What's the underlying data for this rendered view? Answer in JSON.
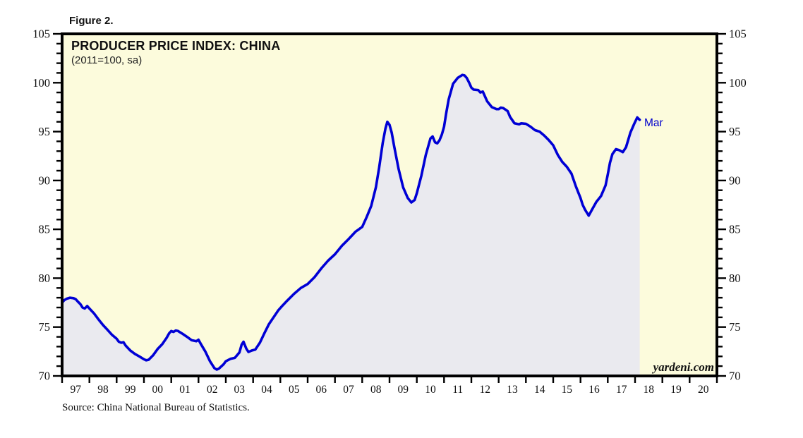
{
  "figure_label": "Figure 2.",
  "header": {
    "title": "PRODUCER PRICE INDEX: CHINA",
    "subtitle": "(2011=100, sa)"
  },
  "watermark": "yardeni.com",
  "source": "Source: China National Bureau of Statistics.",
  "colors": {
    "page_bg": "#ffffff",
    "plot_bg": "#fcfbdc",
    "area_fill": "#eaeaef",
    "line": "#0000d5",
    "frame": "#000000",
    "end_label": "#0000cc",
    "tick": "#000000"
  },
  "chart_data": {
    "type": "line",
    "title": "PRODUCER PRICE INDEX: CHINA",
    "subtitle": "(2011=100, sa)",
    "grid": false,
    "legend": "none",
    "x_axis": {
      "min": 1997,
      "max": 2021,
      "tick_interval_years": 1,
      "labels": [
        "97",
        "98",
        "99",
        "00",
        "01",
        "02",
        "03",
        "04",
        "05",
        "06",
        "07",
        "08",
        "09",
        "10",
        "11",
        "12",
        "13",
        "14",
        "15",
        "16",
        "17",
        "18",
        "19",
        "20"
      ]
    },
    "y_axis": {
      "min": 70,
      "max": 105,
      "major_tick": 5,
      "minor_tick": 1,
      "tick_labels": [
        "70",
        "75",
        "80",
        "85",
        "90",
        "95",
        "100",
        "105"
      ],
      "sides": [
        "left",
        "right"
      ]
    },
    "last_point_label": "Mar",
    "series": [
      {
        "name": "Producer Price Index: China (2011=100, sa)",
        "points": [
          [
            1997.0,
            77.5
          ],
          [
            1997.08,
            77.75
          ],
          [
            1997.17,
            77.9
          ],
          [
            1997.29,
            78.0
          ],
          [
            1997.42,
            77.95
          ],
          [
            1997.5,
            77.85
          ],
          [
            1997.58,
            77.6
          ],
          [
            1997.67,
            77.35
          ],
          [
            1997.75,
            77.0
          ],
          [
            1997.83,
            76.9
          ],
          [
            1997.92,
            77.15
          ],
          [
            1998.0,
            76.9
          ],
          [
            1998.17,
            76.4
          ],
          [
            1998.33,
            75.8
          ],
          [
            1998.5,
            75.2
          ],
          [
            1998.67,
            74.7
          ],
          [
            1998.83,
            74.2
          ],
          [
            1999.0,
            73.8
          ],
          [
            1999.08,
            73.5
          ],
          [
            1999.17,
            73.4
          ],
          [
            1999.25,
            73.45
          ],
          [
            1999.33,
            73.1
          ],
          [
            1999.5,
            72.6
          ],
          [
            1999.67,
            72.25
          ],
          [
            1999.83,
            72.0
          ],
          [
            2000.0,
            71.7
          ],
          [
            2000.08,
            71.6
          ],
          [
            2000.17,
            71.65
          ],
          [
            2000.33,
            72.1
          ],
          [
            2000.5,
            72.75
          ],
          [
            2000.67,
            73.25
          ],
          [
            2000.83,
            73.9
          ],
          [
            2000.92,
            74.35
          ],
          [
            2001.0,
            74.6
          ],
          [
            2001.08,
            74.5
          ],
          [
            2001.17,
            74.65
          ],
          [
            2001.25,
            74.6
          ],
          [
            2001.42,
            74.3
          ],
          [
            2001.58,
            74.0
          ],
          [
            2001.75,
            73.65
          ],
          [
            2001.92,
            73.55
          ],
          [
            2002.0,
            73.7
          ],
          [
            2002.08,
            73.3
          ],
          [
            2002.25,
            72.5
          ],
          [
            2002.42,
            71.5
          ],
          [
            2002.58,
            70.8
          ],
          [
            2002.67,
            70.65
          ],
          [
            2002.75,
            70.75
          ],
          [
            2002.92,
            71.2
          ],
          [
            2003.0,
            71.5
          ],
          [
            2003.17,
            71.75
          ],
          [
            2003.33,
            71.85
          ],
          [
            2003.5,
            72.4
          ],
          [
            2003.58,
            73.2
          ],
          [
            2003.65,
            73.5
          ],
          [
            2003.75,
            72.8
          ],
          [
            2003.83,
            72.45
          ],
          [
            2003.95,
            72.6
          ],
          [
            2004.08,
            72.7
          ],
          [
            2004.25,
            73.4
          ],
          [
            2004.42,
            74.4
          ],
          [
            2004.58,
            75.3
          ],
          [
            2004.75,
            76.0
          ],
          [
            2004.92,
            76.7
          ],
          [
            2005.08,
            77.2
          ],
          [
            2005.25,
            77.7
          ],
          [
            2005.5,
            78.4
          ],
          [
            2005.75,
            79.0
          ],
          [
            2006.0,
            79.4
          ],
          [
            2006.25,
            80.1
          ],
          [
            2006.5,
            81.0
          ],
          [
            2006.75,
            81.8
          ],
          [
            2007.0,
            82.45
          ],
          [
            2007.25,
            83.3
          ],
          [
            2007.5,
            84.0
          ],
          [
            2007.75,
            84.75
          ],
          [
            2008.0,
            85.25
          ],
          [
            2008.17,
            86.3
          ],
          [
            2008.33,
            87.4
          ],
          [
            2008.5,
            89.3
          ],
          [
            2008.62,
            91.3
          ],
          [
            2008.75,
            93.8
          ],
          [
            2008.85,
            95.3
          ],
          [
            2008.92,
            96.0
          ],
          [
            2009.0,
            95.7
          ],
          [
            2009.08,
            94.9
          ],
          [
            2009.17,
            93.5
          ],
          [
            2009.33,
            91.2
          ],
          [
            2009.5,
            89.3
          ],
          [
            2009.67,
            88.2
          ],
          [
            2009.8,
            87.75
          ],
          [
            2009.92,
            88.0
          ],
          [
            2010.0,
            88.7
          ],
          [
            2010.17,
            90.5
          ],
          [
            2010.33,
            92.6
          ],
          [
            2010.5,
            94.3
          ],
          [
            2010.58,
            94.5
          ],
          [
            2010.67,
            93.9
          ],
          [
            2010.75,
            93.8
          ],
          [
            2010.83,
            94.1
          ],
          [
            2010.92,
            94.7
          ],
          [
            2011.0,
            95.5
          ],
          [
            2011.08,
            96.9
          ],
          [
            2011.17,
            98.3
          ],
          [
            2011.33,
            99.9
          ],
          [
            2011.5,
            100.5
          ],
          [
            2011.67,
            100.8
          ],
          [
            2011.75,
            100.75
          ],
          [
            2011.83,
            100.5
          ],
          [
            2011.92,
            100.0
          ],
          [
            2012.0,
            99.5
          ],
          [
            2012.08,
            99.3
          ],
          [
            2012.25,
            99.25
          ],
          [
            2012.33,
            99.0
          ],
          [
            2012.42,
            99.1
          ],
          [
            2012.58,
            98.1
          ],
          [
            2012.75,
            97.5
          ],
          [
            2012.92,
            97.3
          ],
          [
            2013.0,
            97.3
          ],
          [
            2013.08,
            97.45
          ],
          [
            2013.17,
            97.4
          ],
          [
            2013.33,
            97.1
          ],
          [
            2013.42,
            96.5
          ],
          [
            2013.58,
            95.85
          ],
          [
            2013.75,
            95.75
          ],
          [
            2013.83,
            95.85
          ],
          [
            2014.0,
            95.8
          ],
          [
            2014.17,
            95.5
          ],
          [
            2014.33,
            95.15
          ],
          [
            2014.5,
            95.0
          ],
          [
            2014.67,
            94.6
          ],
          [
            2014.83,
            94.15
          ],
          [
            2015.0,
            93.6
          ],
          [
            2015.17,
            92.6
          ],
          [
            2015.33,
            91.9
          ],
          [
            2015.5,
            91.4
          ],
          [
            2015.67,
            90.7
          ],
          [
            2015.83,
            89.4
          ],
          [
            2016.0,
            88.2
          ],
          [
            2016.08,
            87.5
          ],
          [
            2016.17,
            87.0
          ],
          [
            2016.3,
            86.4
          ],
          [
            2016.42,
            87.0
          ],
          [
            2016.58,
            87.8
          ],
          [
            2016.75,
            88.4
          ],
          [
            2016.92,
            89.5
          ],
          [
            2017.0,
            90.6
          ],
          [
            2017.08,
            91.8
          ],
          [
            2017.17,
            92.7
          ],
          [
            2017.3,
            93.2
          ],
          [
            2017.42,
            93.1
          ],
          [
            2017.55,
            92.9
          ],
          [
            2017.67,
            93.4
          ],
          [
            2017.83,
            94.9
          ],
          [
            2017.97,
            95.8
          ],
          [
            2018.08,
            96.45
          ],
          [
            2018.17,
            96.2
          ]
        ]
      }
    ]
  }
}
